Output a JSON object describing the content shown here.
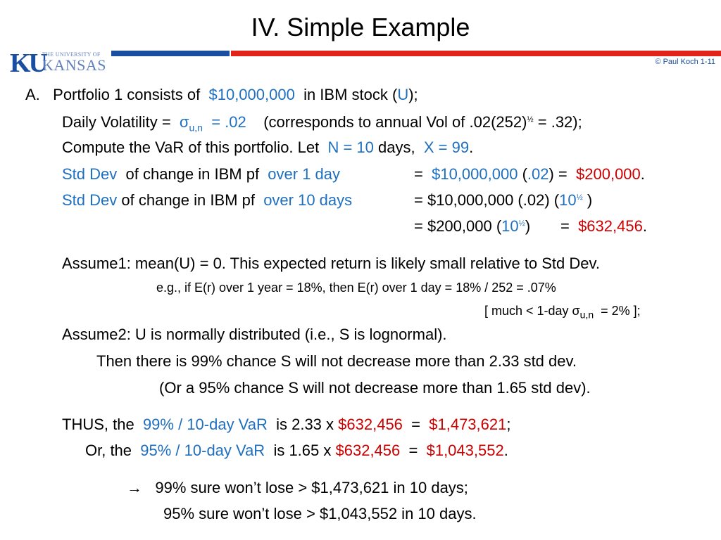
{
  "title": "IV.  Simple Example",
  "logo": {
    "ku": "KU",
    "university": "THE UNIVERSITY OF",
    "kansas": "KANSAS"
  },
  "copyright": "© Paul Koch 1-11",
  "colors": {
    "blue": "#1f6fbf",
    "red": "#cc0000",
    "bar_blue": "#1a4ea0",
    "bar_red": "#e2231a"
  },
  "lines": {
    "a_label": "A.",
    "a_text": "Portfolio 1 consists of",
    "a_amount": "$10,000,000",
    "a_text2": "in IBM stock  (",
    "a_u": "U",
    "a_text3": ");",
    "dv_text": "Daily Volatility  =",
    "dv_sigma": "σ",
    "dv_sub": "u,n",
    "dv_val": "=  .02",
    "dv_text2": "(corresponds to annual Vol of  .02(252)",
    "dv_half": "½",
    "dv_text3": " = .32);",
    "cv_text": "Compute the  VaR  of this portfolio.    Let",
    "cv_n": "N = 10",
    "cv_days": "days,",
    "cv_x": "X = 99",
    "cv_dot": ".",
    "sd1_stddev": "Std Dev",
    "sd1_text": "of change in IBM pf",
    "sd1_over": "over   1 day",
    "sd1_eq": "=",
    "sd1_amount": "$10,000,000",
    "sd1_open": "(",
    "sd1_rate": ".02",
    "sd1_close": ")  =",
    "sd1_result": "$200,000",
    "sd1_dot": ".",
    "sd2_stddev": "Std Dev",
    "sd2_text": "of  change in IBM pf",
    "sd2_over": "over 10 days",
    "sd2_text2": "=  $10,000,000 (.02) (",
    "sd2_ten": "10",
    "sd2_half": "½",
    "sd2_close": ")",
    "sd3_text": "=  $200,000 (",
    "sd3_ten": "10",
    "sd3_half": "½",
    "sd3_close": ")",
    "sd3_eq": "=",
    "sd3_result": "$632,456",
    "sd3_dot": ".",
    "as1": "Assume1:   mean(U) = 0.  This expected return is likely small relative to  Std Dev.",
    "eg": "e.g.,  if  E(r)  over   1 year  = 18%,  then E(r) over 1 day = 18% / 252 = .07%",
    "much_pre": "[ much <   1-day  σ",
    "much_sub": "u,n",
    "much_post": "=  2% ];",
    "as2": "Assume2:   U  is  normally distributed  (i.e.,  S  is  lognormal).",
    "then1": "Then  there is  99%  chance  S  will not decrease more than  2.33  std dev.",
    "then2": "(Or  a  95%  chance  S  will not decrease more than  1.65  std dev).",
    "thus_pre": "THUS,  the",
    "thus_var": "99% / 10-day VaR",
    "thus_mid": "is  2.33 x",
    "thus_amt": "$632,456",
    "thus_eq": "=",
    "thus_res": "$1,473,621",
    "thus_end": ";",
    "or_pre": "Or,   the",
    "or_var": "95% / 10-day VaR",
    "or_mid": "is  1.65 x",
    "or_amt": "$632,456",
    "or_eq": "=",
    "or_res": "$1,043,552",
    "or_end": ".",
    "arrow": "→",
    "sure1": "99%  sure  won’t lose  >  $1,473,621  in 10 days;",
    "sure2": "95%  sure  won’t lose  >  $1,043,552  in 10 days."
  }
}
